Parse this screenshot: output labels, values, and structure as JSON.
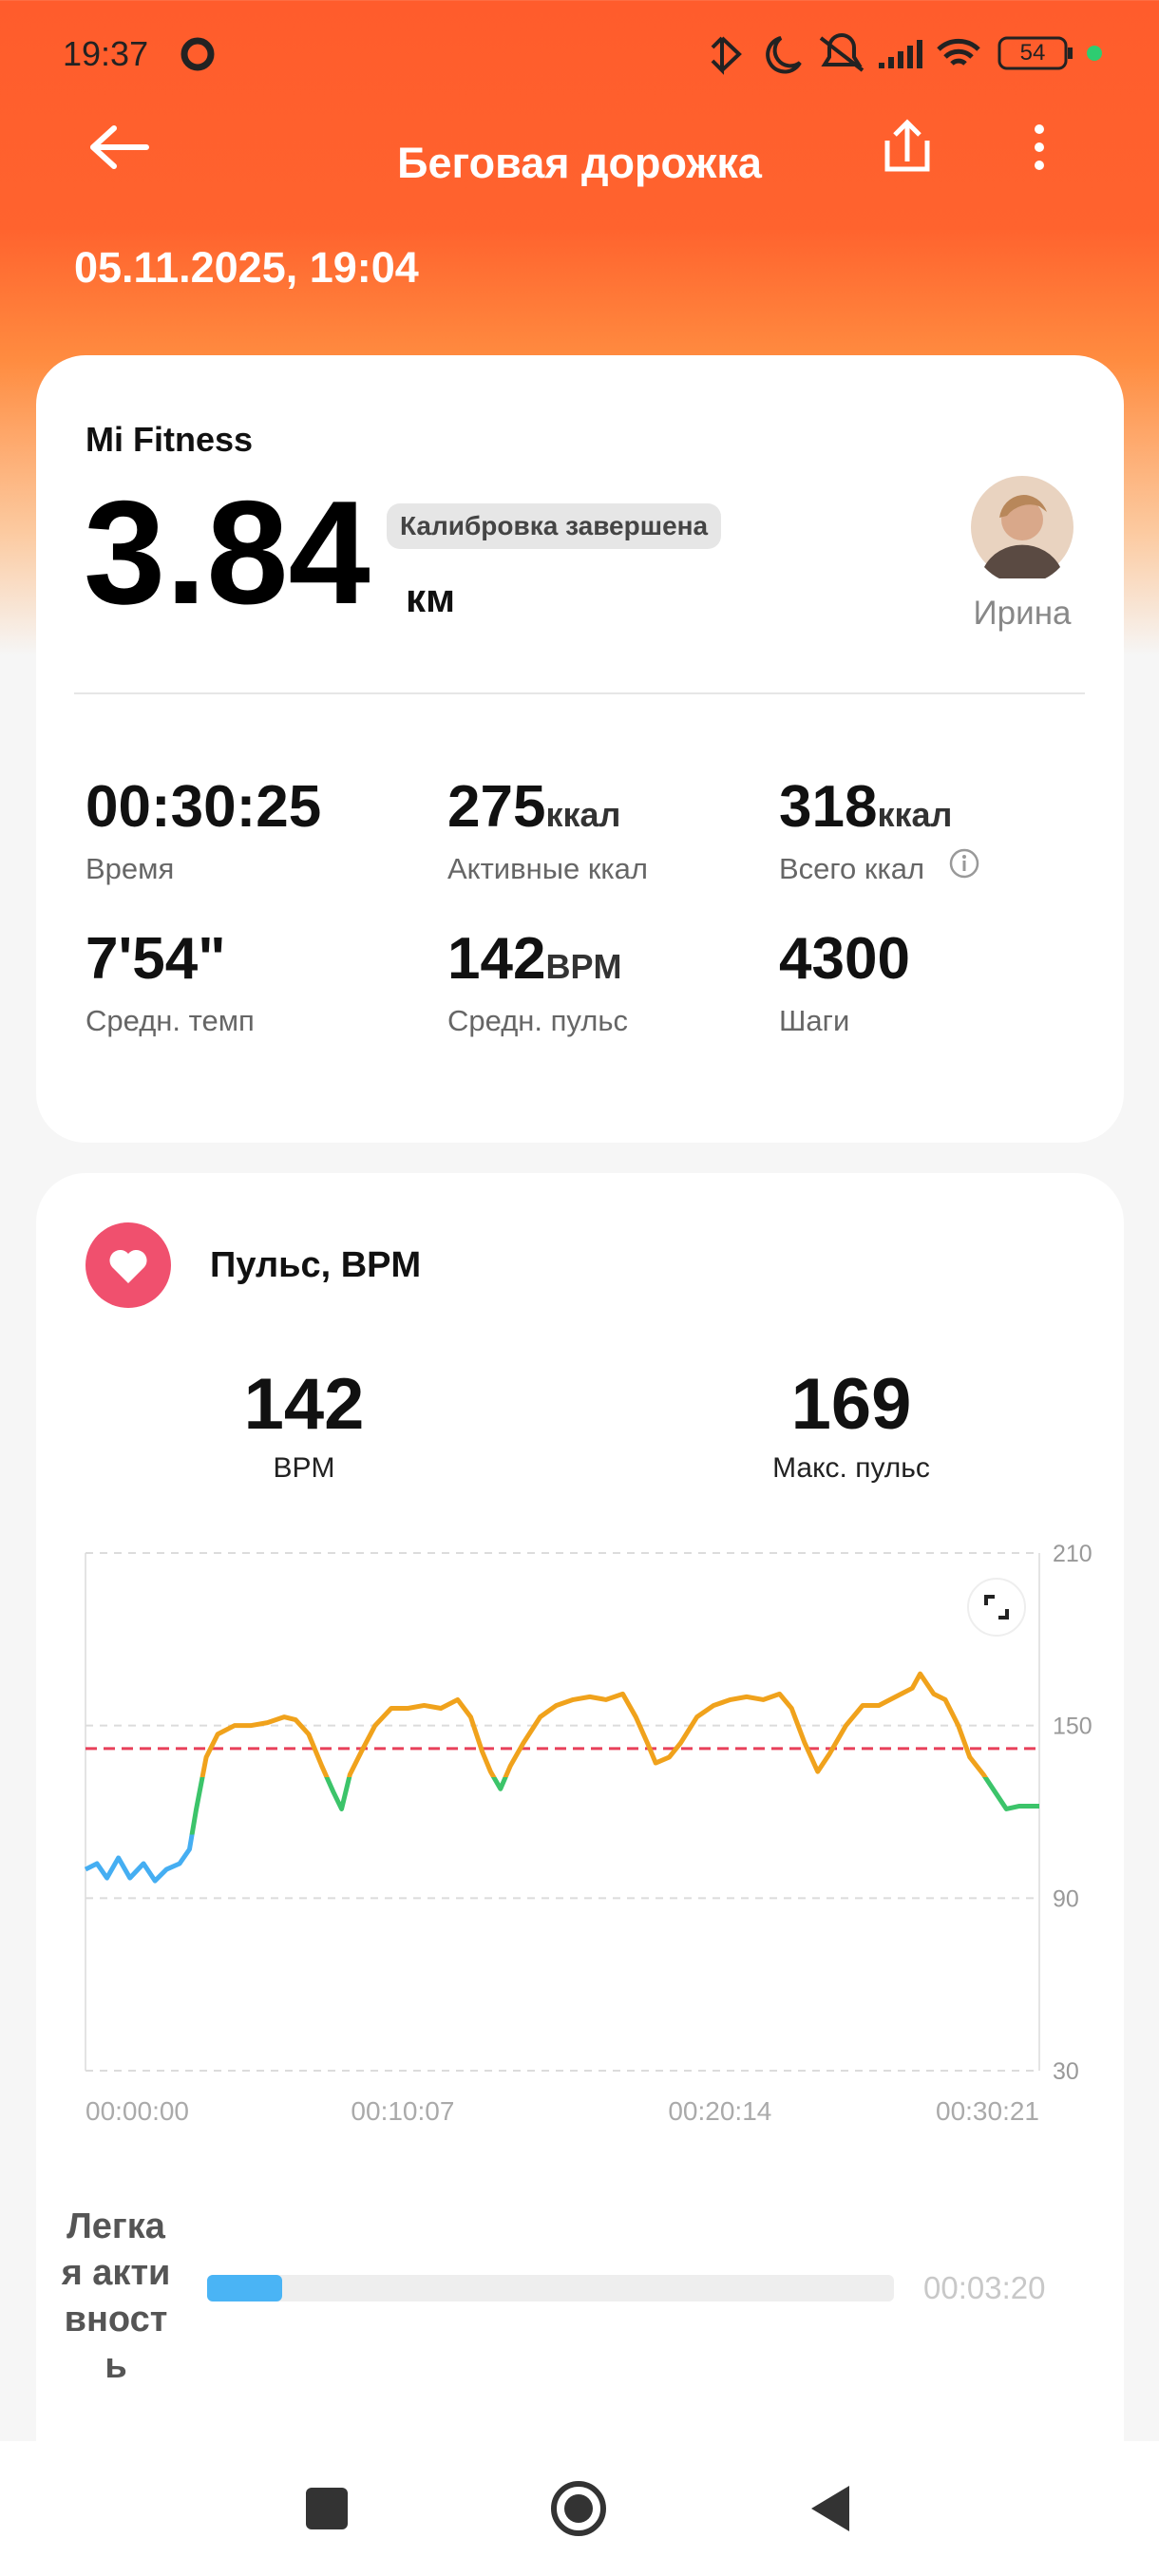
{
  "status_bar": {
    "time": "19:37",
    "battery": "54"
  },
  "header": {
    "title": "Беговая дорожка",
    "date": "05.11.2025, 19:04"
  },
  "summary": {
    "source": "Mi Fitness",
    "distance": "3.84",
    "unit": "км",
    "badge": "Калибровка завершена",
    "user": "Ирина"
  },
  "stats": [
    {
      "value": "00:30:25",
      "label": "Время"
    },
    {
      "value": "275",
      "unit": "ккал",
      "label": "Активные ккал"
    },
    {
      "value": "318",
      "unit": "ккал",
      "label": "Всего ккал"
    },
    {
      "value": "7'54\"",
      "label": "Средн. темп"
    },
    {
      "value": "142",
      "unit": "BPM",
      "label": "Средн. пульс"
    },
    {
      "value": "4300",
      "label": "Шаги"
    }
  ],
  "heart": {
    "title": "Пульс, BPM",
    "avg": {
      "value": "142",
      "label": "BPM"
    },
    "max": {
      "value": "169",
      "label": "Макс. пульс"
    },
    "zones": [
      {
        "name": "Легкая активность",
        "color": "#4ab4f5",
        "duration": {
          "value": 200,
          "label": "00:03:20"
        }
      }
    ]
  },
  "chart_data": {
    "type": "line",
    "x": [
      0,
      22,
      41,
      63,
      85,
      111,
      133,
      155,
      180,
      199,
      212,
      231,
      253,
      285,
      316,
      348,
      380,
      402,
      427,
      452,
      474,
      490,
      506,
      528,
      554,
      585,
      617,
      648,
      680,
      712,
      737,
      759,
      775,
      794,
      813,
      838,
      870,
      901,
      933,
      965,
      996,
      1028,
      1053,
      1075,
      1091,
      1117,
      1139,
      1170,
      1202,
      1234,
      1265,
      1297,
      1328,
      1351,
      1376,
      1401,
      1423,
      1455,
      1487,
      1518,
      1550,
      1582,
      1597,
      1623,
      1645,
      1670,
      1692,
      1718,
      1740,
      1762,
      1787,
      1825
    ],
    "series": [
      {
        "name": "Пульс",
        "values": [
          100,
          102,
          97,
          104,
          97,
          102,
          96,
          100,
          102,
          107,
          121,
          139,
          147,
          150,
          150,
          151,
          153,
          152,
          147,
          136,
          127,
          121,
          133,
          141,
          150,
          156,
          156,
          157,
          156,
          159,
          153,
          141,
          134,
          128,
          136,
          144,
          153,
          157,
          159,
          160,
          159,
          161,
          153,
          144,
          137,
          139,
          144,
          153,
          157,
          159,
          160,
          159,
          161,
          156,
          144,
          134,
          140,
          150,
          157,
          157,
          160,
          163,
          168,
          161,
          159,
          150,
          139,
          133,
          127,
          121,
          122,
          122
        ]
      }
    ],
    "zone_colors": [
      {
        "from": 30,
        "color": "#45aef2"
      },
      {
        "from": 112,
        "color": "#3cc46a"
      },
      {
        "from": 132,
        "color": "#f0a21c"
      }
    ],
    "reference_line": 142,
    "reference_color": "#e8405a",
    "xlim": [
      0,
      1825
    ],
    "xticks": [
      {
        "value": 0,
        "label": "00:00:00"
      },
      {
        "value": 607,
        "label": "00:10:07"
      },
      {
        "value": 1214,
        "label": "00:20:14"
      },
      {
        "value": 1821,
        "label": "00:30:21"
      }
    ],
    "ylim": [
      30,
      210
    ],
    "yticks": [
      30,
      90,
      150,
      210
    ],
    "grid": true
  }
}
